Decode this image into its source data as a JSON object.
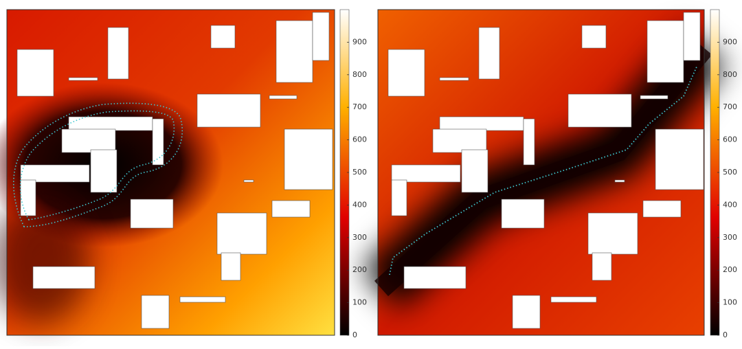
{
  "chart_data": [
    {
      "type": "heatmap",
      "colormap": "hot",
      "path_color": "#3ec8d0",
      "clim": [
        0,
        1000
      ],
      "cticks": [
        0,
        100,
        200,
        300,
        400,
        500,
        600,
        700,
        800,
        900
      ]
    },
    {
      "type": "heatmap",
      "colormap": "hot",
      "path_color": "#3ec8d0",
      "clim": [
        0,
        1000
      ],
      "cticks": [
        0,
        100,
        200,
        300,
        400,
        500,
        600,
        700,
        800,
        900
      ]
    }
  ]
}
